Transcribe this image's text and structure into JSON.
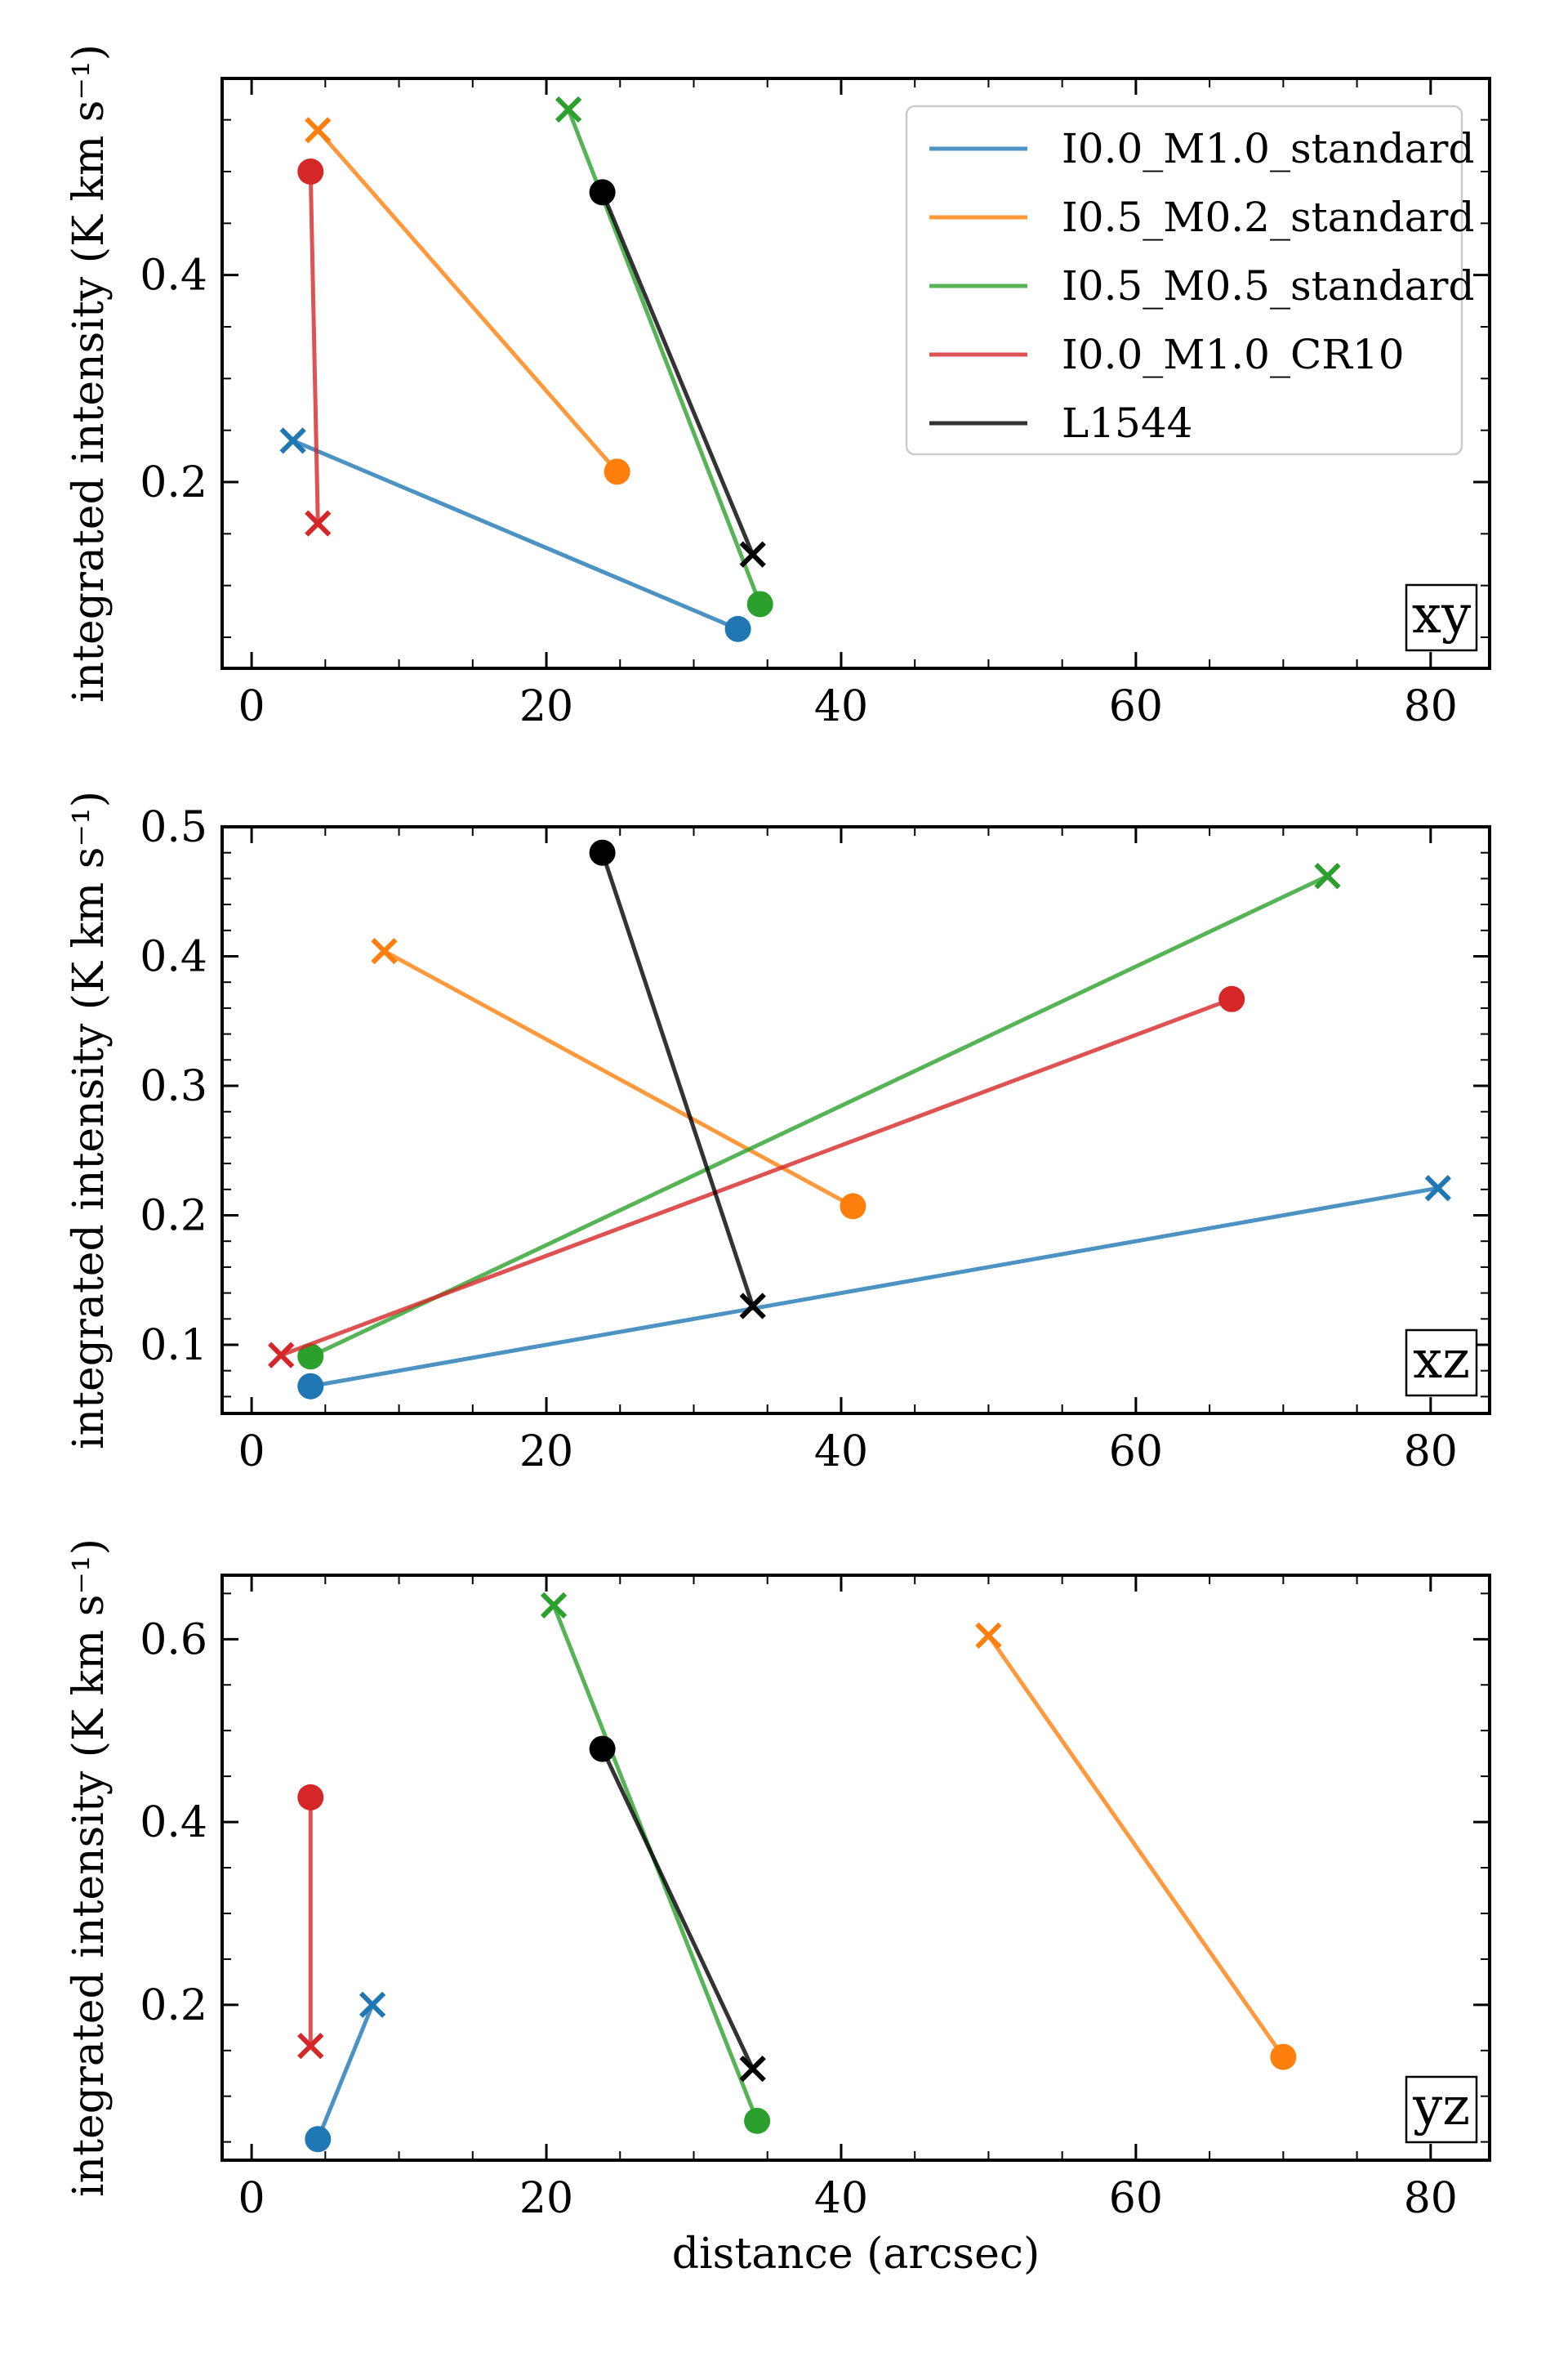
{
  "chart_data": [
    {
      "type": "line",
      "panel_label": "xy",
      "xlabel": "",
      "ylabel": "integrated intensity (K km s⁻¹)",
      "xlim": [
        -2,
        84
      ],
      "ylim": [
        0.02,
        0.59
      ],
      "xticks": [
        0,
        20,
        40,
        60,
        80
      ],
      "xtick_labels": [
        "0",
        "20",
        "40",
        "60",
        "80"
      ],
      "yticks": [
        0.2,
        0.4
      ],
      "ytick_labels": [
        "0.2",
        "0.4"
      ],
      "legend": {
        "position": "top-right",
        "entries": [
          "I0.0_M1.0_standard",
          "I0.5_M0.2_standard",
          "I0.5_M0.5_standard",
          "I0.0_M1.0_CR10",
          "L1544"
        ]
      },
      "series": [
        {
          "name": "I0.0_M1.0_standard",
          "color": "#1f77b4",
          "cross": [
            2.8,
            0.24
          ],
          "circle": [
            33.0,
            0.058
          ]
        },
        {
          "name": "I0.5_M0.2_standard",
          "color": "#ff7f0e",
          "cross": [
            4.5,
            0.54
          ],
          "circle": [
            24.8,
            0.21
          ]
        },
        {
          "name": "I0.5_M0.5_standard",
          "color": "#2ca02c",
          "cross": [
            21.5,
            0.56
          ],
          "circle": [
            34.5,
            0.082
          ]
        },
        {
          "name": "I0.0_M1.0_CR10",
          "color": "#d62728",
          "cross": [
            4.5,
            0.16
          ],
          "circle": [
            4.0,
            0.5
          ]
        },
        {
          "name": "L1544",
          "color": "#000000",
          "cross": [
            34.0,
            0.13
          ],
          "circle": [
            23.8,
            0.48
          ]
        }
      ]
    },
    {
      "type": "line",
      "panel_label": "xz",
      "xlabel": "",
      "ylabel": "integrated intensity (K km s⁻¹)",
      "xlim": [
        -2,
        84
      ],
      "ylim": [
        0.047,
        0.5
      ],
      "xticks": [
        0,
        20,
        40,
        60,
        80
      ],
      "xtick_labels": [
        "0",
        "20",
        "40",
        "60",
        "80"
      ],
      "yticks": [
        0.1,
        0.2,
        0.3,
        0.4,
        0.5
      ],
      "ytick_labels": [
        "0.1",
        "0.2",
        "0.3",
        "0.4",
        "0.5"
      ],
      "series": [
        {
          "name": "I0.0_M1.0_standard",
          "color": "#1f77b4",
          "cross": [
            80.5,
            0.221
          ],
          "circle": [
            4.0,
            0.068
          ]
        },
        {
          "name": "I0.5_M0.2_standard",
          "color": "#ff7f0e",
          "cross": [
            9.0,
            0.404
          ],
          "circle": [
            40.8,
            0.207
          ]
        },
        {
          "name": "I0.5_M0.5_standard",
          "color": "#2ca02c",
          "cross": [
            73.0,
            0.462
          ],
          "circle": [
            4.0,
            0.091
          ]
        },
        {
          "name": "I0.0_M1.0_CR10",
          "color": "#d62728",
          "cross": [
            2.0,
            0.092
          ],
          "circle": [
            66.5,
            0.367
          ]
        },
        {
          "name": "L1544",
          "color": "#000000",
          "cross": [
            34.0,
            0.13
          ],
          "circle": [
            23.8,
            0.48
          ]
        }
      ]
    },
    {
      "type": "line",
      "panel_label": "yz",
      "xlabel": "distance (arcsec)",
      "ylabel": "integrated intensity (K km s⁻¹)",
      "xlim": [
        -2,
        84
      ],
      "ylim": [
        0.03,
        0.67
      ],
      "xticks": [
        0,
        20,
        40,
        60,
        80
      ],
      "xtick_labels": [
        "0",
        "20",
        "40",
        "60",
        "80"
      ],
      "yticks": [
        0.2,
        0.4,
        0.6
      ],
      "ytick_labels": [
        "0.2",
        "0.4",
        "0.6"
      ],
      "series": [
        {
          "name": "I0.0_M1.0_standard",
          "color": "#1f77b4",
          "cross": [
            8.2,
            0.2
          ],
          "circle": [
            4.5,
            0.053
          ]
        },
        {
          "name": "I0.5_M0.2_standard",
          "color": "#ff7f0e",
          "cross": [
            50.0,
            0.604
          ],
          "circle": [
            70.0,
            0.143
          ]
        },
        {
          "name": "I0.5_M0.5_standard",
          "color": "#2ca02c",
          "cross": [
            20.5,
            0.637
          ],
          "circle": [
            34.3,
            0.073
          ]
        },
        {
          "name": "I0.0_M1.0_CR10",
          "color": "#d62728",
          "cross": [
            4.0,
            0.155
          ],
          "circle": [
            4.0,
            0.427
          ]
        },
        {
          "name": "L1544",
          "color": "#000000",
          "cross": [
            34.0,
            0.13
          ],
          "circle": [
            23.8,
            0.48
          ]
        }
      ]
    }
  ]
}
